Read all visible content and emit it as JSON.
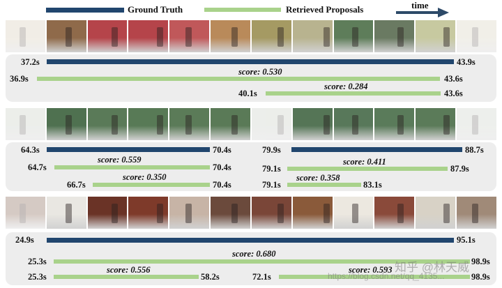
{
  "legend": {
    "ground_truth": "Ground Truth",
    "retrieved": "Retrieved Proposals",
    "time": "time",
    "colors": {
      "ground_truth": "#21466e",
      "retrieved": "#a9d28b"
    }
  },
  "panel1": {
    "gt_start": "37.2s",
    "gt_end": "43.9s",
    "p1_start": "36.9s",
    "p1_end": "43.6s",
    "p1_score": "score: 0.530",
    "p2_start": "40.1s",
    "p2_end": "43.6s",
    "p2_score": "score: 0.284"
  },
  "panel2": {
    "left": {
      "gt_start": "64.3s",
      "gt_end": "70.4s",
      "p1_start": "64.7s",
      "p1_end": "70.4s",
      "p1_score": "score: 0.559",
      "p2_start": "66.7s",
      "p2_end": "70.4s",
      "p2_score": "score: 0.350"
    },
    "right": {
      "gt_start": "79.9s",
      "gt_end": "88.7s",
      "p1_start": "79.1s",
      "p1_end": "87.9s",
      "p1_score": "score: 0.411",
      "p2_start": "79.1s",
      "p2_end": "83.1s",
      "p2_score": "score: 0.358"
    }
  },
  "panel3": {
    "gt_start": "24.9s",
    "gt_end": "95.1s",
    "p1_start": "25.3s",
    "p1_end": "98.9s",
    "p1_score": "score: 0.680",
    "p2_start": "25.3s",
    "p2_end": "58.2s",
    "p2_score": "score: 0.556",
    "p3_start": "72.1s",
    "p3_end": "98.9s",
    "p3_score": "score: 0.593"
  },
  "watermark": {
    "brand": "知乎 @林天威",
    "url": "https://blog.csdn.net/qq_4135..."
  },
  "thumbs": {
    "row1": [
      "#d9cdb8",
      "#8f6a4a",
      "#b5444a",
      "#b5444a",
      "#c0585a",
      "#b98a5a",
      "#a59a63",
      "#b8b38f",
      "#5e7d5a",
      "#6a7a62",
      "#c7c9a0",
      "#d8d2c0"
    ],
    "row2": [
      "#c9cfc6",
      "#4f7150",
      "#5a7a58",
      "#587a56",
      "#5b7b58",
      "#5a7a57",
      "#c9cfc6",
      "#557556",
      "#58785a",
      "#5a7b5a",
      "#5b7b59",
      "#cdd2ca"
    ],
    "row3": [
      "#8a6a58",
      "#e9e7e2",
      "#6a3326",
      "#7e3a2a",
      "#c7b4a6",
      "#6b4a3c",
      "#7a4638",
      "#8a5a3a",
      "#ece8e0",
      "#8a4a3a",
      "#d8d2c6",
      "#a08a78"
    ]
  }
}
